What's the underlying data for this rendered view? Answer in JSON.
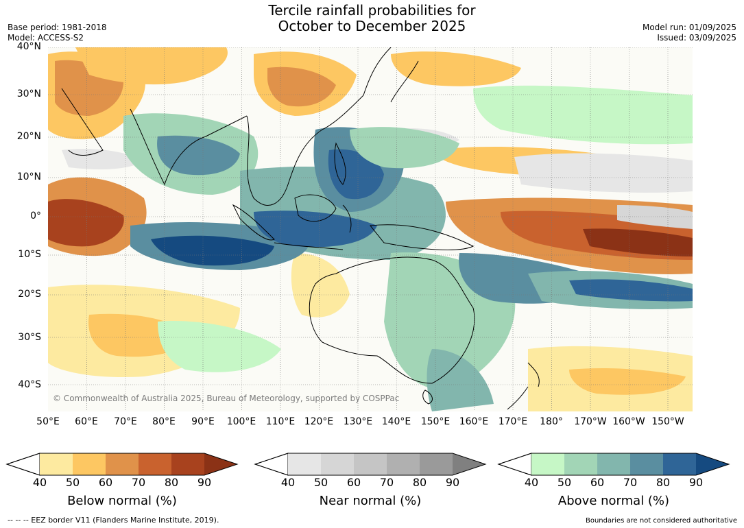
{
  "header": {
    "title_line1": "Tercile rainfall probabilities for",
    "title_line2": "October to December 2025",
    "base_period": "Base period: 1981-2018",
    "model": "Model: ACCESS-S2",
    "model_run": "Model run: 01/09/2025",
    "issued": "Issued: 03/09/2025"
  },
  "map": {
    "lat_labels": [
      "40°N",
      "30°N",
      "20°N",
      "10°N",
      "0°",
      "10°S",
      "20°S",
      "30°S",
      "40°S"
    ],
    "lon_labels": [
      "50°E",
      "60°E",
      "70°E",
      "80°E",
      "90°E",
      "100°E",
      "110°E",
      "120°E",
      "130°E",
      "140°E",
      "150°E",
      "160°E",
      "170°E",
      "180°",
      "170°W",
      "160°W",
      "150°W"
    ],
    "copyright": "© Commonwealth of Australia 2025, Bureau of Meteorology, supported by COSPPac",
    "colors": {
      "below": [
        "#fdeaa0",
        "#fdc762",
        "#e0924a",
        "#c9622e",
        "#a8421e",
        "#8b3216"
      ],
      "near": [
        "#e6e6e6",
        "#d6d6d6",
        "#c5c5c5",
        "#b0b0b0",
        "#9a9a9a",
        "#808080"
      ],
      "above": [
        "#c6f7c6",
        "#a2d5b6",
        "#82b6ad",
        "#5a8ea0",
        "#2f6597",
        "#154a80"
      ]
    }
  },
  "colorbars": [
    {
      "name": "below",
      "caption": "Below normal (%)",
      "ticks": [
        "40",
        "50",
        "60",
        "70",
        "80",
        "90"
      ]
    },
    {
      "name": "near",
      "caption": "Near normal (%)",
      "ticks": [
        "40",
        "50",
        "60",
        "70",
        "80",
        "90"
      ]
    },
    {
      "name": "above",
      "caption": "Above normal (%)",
      "ticks": [
        "40",
        "50",
        "60",
        "70",
        "80",
        "90"
      ]
    }
  ],
  "footer": {
    "eez": "--  --  -- EEZ border V11 (Flanders Marine Institute, 2019).",
    "disclaimer": "Boundaries are not considered authoritative"
  }
}
